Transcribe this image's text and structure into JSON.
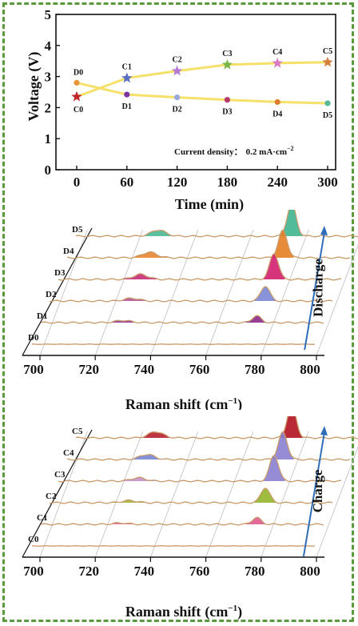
{
  "chart_data": [
    {
      "type": "line",
      "xlabel": "Time (min)",
      "ylabel": "Voltage (V)",
      "xlim": [
        0,
        300
      ],
      "ylim": [
        0,
        5
      ],
      "xticks": [
        "0",
        "60",
        "120",
        "180",
        "240",
        "300"
      ],
      "yticks": [
        "0",
        "1",
        "2",
        "3",
        "4",
        "5"
      ],
      "annotation": "Current density: 0.2 mA·cm⁻²",
      "annotation_label": "Current density：",
      "annotation_value": "0.2 mA·cm",
      "annotation_exp": "−2",
      "x": [
        0,
        60,
        120,
        180,
        240,
        300
      ],
      "series": [
        {
          "values": [
            2.35,
            2.95,
            3.18,
            3.38,
            3.43,
            3.46
          ],
          "labels": [
            "C0",
            "C1",
            "C2",
            "C3",
            "C4",
            "C5"
          ],
          "marker_colors": [
            "#c0282d",
            "#5b6fc0",
            "#b57ad1",
            "#7ab648",
            "#d97bc4",
            "#d5803a"
          ]
        },
        {
          "values": [
            2.8,
            2.42,
            2.33,
            2.25,
            2.18,
            2.14
          ],
          "labels": [
            "D0",
            "D1",
            "D2",
            "D3",
            "D4",
            "D5"
          ],
          "marker_colors": [
            "#e69637",
            "#7a35a3",
            "#9aa9dd",
            "#b53a6a",
            "#e07c2e",
            "#57b89a"
          ]
        }
      ],
      "line_color": "#f5e06a"
    },
    {
      "type": "area",
      "xlabel": "Raman shift",
      "xlabel_unit": "(cm",
      "xlabel_exp": "−1",
      "xlim": [
        700,
        800
      ],
      "xticks": [
        "700",
        "720",
        "740",
        "760",
        "780",
        "800"
      ],
      "arrow_label": "Discharge",
      "series": [
        {
          "name": "D0",
          "color": "#cfa97b",
          "peak1": 0,
          "peak2": 0
        },
        {
          "name": "D1",
          "color": "#8b2a8a",
          "peak1": 0.2,
          "peak2": 0.25
        },
        {
          "name": "D2",
          "color": "#b24a8e",
          "peak1": 0.25,
          "peak2": 0.55
        },
        {
          "name": "D3",
          "color": "#c3206e",
          "peak1": 0.45,
          "peak2": 0.95
        },
        {
          "name": "D4",
          "color": "#e67e22",
          "peak1": 0.5,
          "peak2": 1.0
        },
        {
          "name": "D5",
          "color": "#3fb48f",
          "peak1": 0.55,
          "peak2": 1.2
        }
      ],
      "peak2_colors": [
        "#cfa97b",
        "#8b2a8a",
        "#7b87d6",
        "#d21f6e",
        "#e67e22",
        "#3fb48f"
      ]
    },
    {
      "type": "area",
      "xlabel": "Raman shift",
      "xlabel_unit": "(cm",
      "xlabel_exp": "−1",
      "xlim": [
        700,
        800
      ],
      "xticks": [
        "700",
        "720",
        "740",
        "760",
        "780",
        "800"
      ],
      "arrow_label": "Charge",
      "series": [
        {
          "name": "C0",
          "color": "#cfa97b",
          "peak1": 0,
          "peak2": 0
        },
        {
          "name": "C1",
          "color": "#e05b8f",
          "peak1": 0.12,
          "peak2": 0.25
        },
        {
          "name": "C2",
          "color": "#9fae2c",
          "peak1": 0.2,
          "peak2": 0.55
        },
        {
          "name": "C3",
          "color": "#c08ac8",
          "peak1": 0.3,
          "peak2": 0.95
        },
        {
          "name": "C4",
          "color": "#6f7fd2",
          "peak1": 0.45,
          "peak2": 1.0
        },
        {
          "name": "C5",
          "color": "#b11320",
          "peak1": 0.55,
          "peak2": 1.2
        }
      ],
      "peak2_colors": [
        "#cfa97b",
        "#e05b8f",
        "#94b52a",
        "#8a7fd0",
        "#8a7fd0",
        "#b11320"
      ]
    }
  ]
}
